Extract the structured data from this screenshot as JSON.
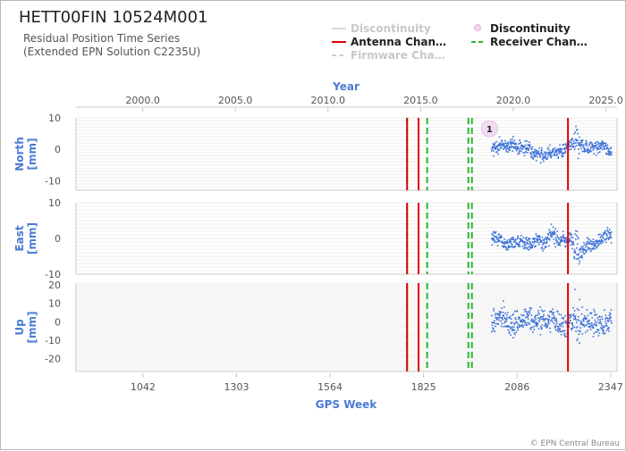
{
  "header": {
    "title": "HETT00FIN 10524M001",
    "subtitle_line1": "Residual Position Time Series",
    "subtitle_line2": "(Extended EPN Solution C2235U)"
  },
  "legend": [
    {
      "label": "Discontinuity",
      "style": "line-faded"
    },
    {
      "label": "Discontinuity",
      "style": "dot"
    },
    {
      "label": "Antenna Chan…",
      "style": "red-line"
    },
    {
      "label": "Receiver Chan…",
      "style": "green-dash"
    },
    {
      "label": "Firmware Cha…",
      "style": "faded-dash"
    }
  ],
  "footer": {
    "credit": "© EPN Central Bureau"
  },
  "chart_data": {
    "type": "scatter",
    "top_axis": {
      "label": "Year",
      "ticks": [
        "2000.0",
        "2005.0",
        "2010.0",
        "2015.0",
        "2020.0",
        "2025.0"
      ],
      "range": [
        1996.4,
        2025.6
      ]
    },
    "bottom_axis": {
      "label": "GPS Week",
      "ticks": [
        "1042",
        "1303",
        "1564",
        "1825",
        "2086",
        "2347"
      ],
      "range": [
        855,
        2365
      ]
    },
    "panels": [
      {
        "name": "North",
        "ylabel": "North\n[mm]",
        "ylim": [
          -13,
          10
        ],
        "yticks": [
          "10",
          "0",
          "-10"
        ]
      },
      {
        "name": "East",
        "ylabel": "East\n[mm]",
        "ylim": [
          -10,
          10
        ],
        "yticks": [
          "10",
          "0",
          "-10"
        ]
      },
      {
        "name": "Up",
        "ylabel": "Up\n[mm]",
        "ylim": [
          -27,
          21
        ],
        "yticks": [
          "20",
          "10",
          "0",
          "-10",
          "-20"
        ]
      }
    ],
    "events": {
      "antenna_change_weeks": [
        1779,
        1811,
        2228
      ],
      "receiver_change_weeks": [
        1779,
        1835,
        1950,
        1960
      ],
      "discontinuity_marker": {
        "week": 2009,
        "label": "1"
      }
    },
    "data_range_weeks": [
      2015,
      2350
    ],
    "series_color": "#3a6fd8",
    "antenna_color": "#e00000",
    "receiver_color": "#2fb52f"
  }
}
